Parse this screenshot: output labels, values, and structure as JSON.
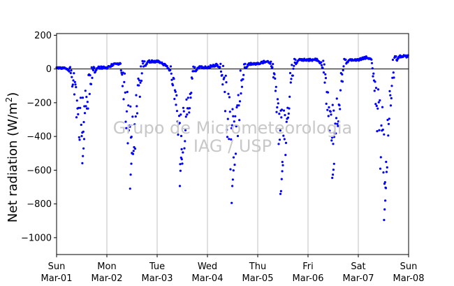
{
  "chart_data": {
    "type": "scatter",
    "ylabel_main": "Net radiation (W/m",
    "ylabel_sup": "2",
    "ylabel_close": ")",
    "ylim": [
      -1100,
      210
    ],
    "xlim": [
      0,
      7
    ],
    "grid": "vertical",
    "yticks": [
      {
        "value": 200,
        "label": "200"
      },
      {
        "value": 0,
        "label": "0"
      },
      {
        "value": -200,
        "label": "−200"
      },
      {
        "value": -400,
        "label": "−400"
      },
      {
        "value": -600,
        "label": "−600"
      },
      {
        "value": -800,
        "label": "−800"
      },
      {
        "value": -1000,
        "label": "−1000"
      }
    ],
    "xticks": [
      {
        "value": 0,
        "day": "Sun",
        "date": "Mar-01"
      },
      {
        "value": 1,
        "day": "Mon",
        "date": "Mar-02"
      },
      {
        "value": 2,
        "day": "Tue",
        "date": "Mar-03"
      },
      {
        "value": 3,
        "day": "Wed",
        "date": "Mar-04"
      },
      {
        "value": 4,
        "day": "Thu",
        "date": "Mar-05"
      },
      {
        "value": 5,
        "day": "Fri",
        "date": "Mar-06"
      },
      {
        "value": 6,
        "day": "Sat",
        "date": "Mar-07"
      },
      {
        "value": 7,
        "day": "Sun",
        "date": "Mar-08"
      }
    ],
    "zero_line": 0,
    "series_color": "#0000ff",
    "days": [
      {
        "night_level": 8,
        "peak": -570,
        "peak_time": 0.53,
        "outliers": [
          -560,
          -520,
          -470,
          -420
        ]
      },
      {
        "night_level": 45,
        "peak": -720,
        "peak_time": 0.48,
        "outliers": [
          -710,
          -620,
          -560,
          -500
        ]
      },
      {
        "night_level": 10,
        "peak": -720,
        "peak_time": 0.47,
        "outliers": [
          -700,
          -600,
          -520,
          -480
        ]
      },
      {
        "night_level": 30,
        "peak": -810,
        "peak_time": 0.5,
        "outliers": [
          -800,
          -700,
          -650,
          -600
        ]
      },
      {
        "night_level": 55,
        "peak": -750,
        "peak_time": 0.47,
        "outliers": [
          -740,
          -720,
          -650,
          -600
        ]
      },
      {
        "night_level": 55,
        "peak": -660,
        "peak_time": 0.5,
        "outliers": [
          -640,
          -620,
          -600,
          -560
        ]
      },
      {
        "night_level": 75,
        "peak": -900,
        "peak_time": 0.53,
        "outliers": [
          -900,
          -840,
          -780,
          -700
        ]
      }
    ]
  },
  "watermark": {
    "line1": "Grupo de Micrometeorologia",
    "line2": "IAG / USP"
  }
}
